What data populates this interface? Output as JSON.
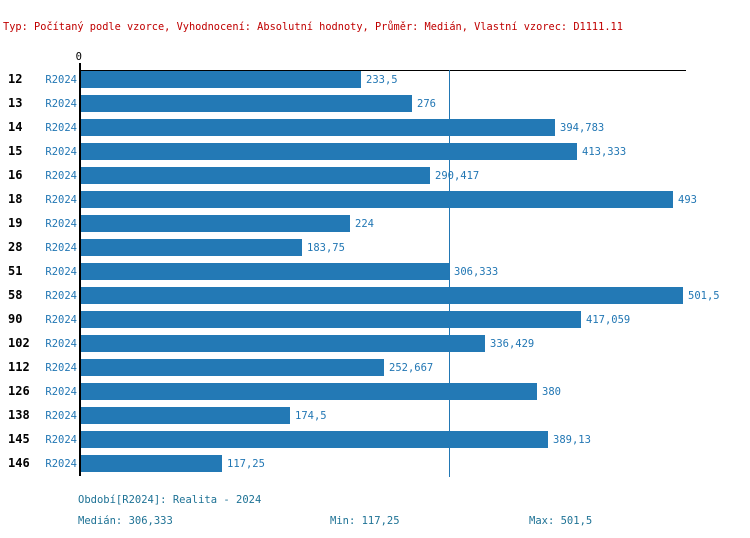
{
  "header": {
    "text": "Typ: Počítaný podle vzorce, Vyhodnocení: Absolutní hodnoty, Průměr: Medián, Vlastní vzorec: D1111.11"
  },
  "axis": {
    "zero_label": "0"
  },
  "colors": {
    "bar": "#2379B5",
    "label_blue": "#2277B4",
    "footer_teal": "#1E7295",
    "header_red": "#C00000",
    "axis_black": "#000000"
  },
  "chart_data": {
    "type": "bar",
    "orientation": "horizontal",
    "series_name": "R2024",
    "categories": [
      "12",
      "13",
      "14",
      "15",
      "16",
      "18",
      "19",
      "28",
      "51",
      "58",
      "90",
      "102",
      "112",
      "126",
      "138",
      "145",
      "146"
    ],
    "values": [
      233.5,
      276,
      394.783,
      413.333,
      290.417,
      493,
      224,
      183.75,
      306.333,
      501.5,
      417.059,
      336.429,
      252.667,
      380,
      174.5,
      389.13,
      117.25
    ],
    "value_labels": [
      "233,5",
      "276",
      "394,783",
      "413,333",
      "290,417",
      "493",
      "224",
      "183,75",
      "306,333",
      "501,5",
      "417,059",
      "336,429",
      "252,667",
      "380",
      "174,5",
      "389,13",
      "117,25"
    ],
    "xlim": [
      0,
      503
    ],
    "median": 306.333,
    "grid": false,
    "legend": "none",
    "title": ""
  },
  "footer": {
    "period": "Období[R2024]: Realita - 2024",
    "median": "Medián: 306,333",
    "min": "Min: 117,25",
    "max": "Max: 501,5"
  }
}
